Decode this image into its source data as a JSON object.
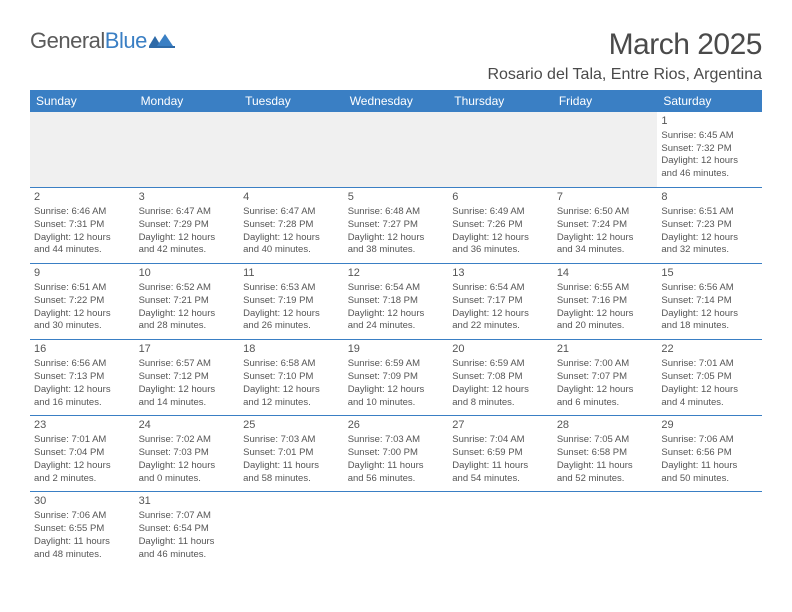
{
  "logo": {
    "text1": "General",
    "text2": "Blue"
  },
  "title": {
    "month": "March 2025",
    "location": "Rosario del Tala, Entre Rios, Argentina"
  },
  "colors": {
    "header_bg": "#3a7fc4",
    "header_text": "#ffffff",
    "cell_border": "#3a7fc4",
    "empty_bg": "#f0f0f0",
    "body_text": "#555555",
    "logo_gray": "#5a5a5a",
    "logo_blue": "#3a7fc4"
  },
  "weekdays": [
    "Sunday",
    "Monday",
    "Tuesday",
    "Wednesday",
    "Thursday",
    "Friday",
    "Saturday"
  ],
  "weeks": [
    [
      null,
      null,
      null,
      null,
      null,
      null,
      {
        "d": "1",
        "sr": "6:45 AM",
        "ss": "7:32 PM",
        "dl": "12 hours and 46 minutes."
      }
    ],
    [
      {
        "d": "2",
        "sr": "6:46 AM",
        "ss": "7:31 PM",
        "dl": "12 hours and 44 minutes."
      },
      {
        "d": "3",
        "sr": "6:47 AM",
        "ss": "7:29 PM",
        "dl": "12 hours and 42 minutes."
      },
      {
        "d": "4",
        "sr": "6:47 AM",
        "ss": "7:28 PM",
        "dl": "12 hours and 40 minutes."
      },
      {
        "d": "5",
        "sr": "6:48 AM",
        "ss": "7:27 PM",
        "dl": "12 hours and 38 minutes."
      },
      {
        "d": "6",
        "sr": "6:49 AM",
        "ss": "7:26 PM",
        "dl": "12 hours and 36 minutes."
      },
      {
        "d": "7",
        "sr": "6:50 AM",
        "ss": "7:24 PM",
        "dl": "12 hours and 34 minutes."
      },
      {
        "d": "8",
        "sr": "6:51 AM",
        "ss": "7:23 PM",
        "dl": "12 hours and 32 minutes."
      }
    ],
    [
      {
        "d": "9",
        "sr": "6:51 AM",
        "ss": "7:22 PM",
        "dl": "12 hours and 30 minutes."
      },
      {
        "d": "10",
        "sr": "6:52 AM",
        "ss": "7:21 PM",
        "dl": "12 hours and 28 minutes."
      },
      {
        "d": "11",
        "sr": "6:53 AM",
        "ss": "7:19 PM",
        "dl": "12 hours and 26 minutes."
      },
      {
        "d": "12",
        "sr": "6:54 AM",
        "ss": "7:18 PM",
        "dl": "12 hours and 24 minutes."
      },
      {
        "d": "13",
        "sr": "6:54 AM",
        "ss": "7:17 PM",
        "dl": "12 hours and 22 minutes."
      },
      {
        "d": "14",
        "sr": "6:55 AM",
        "ss": "7:16 PM",
        "dl": "12 hours and 20 minutes."
      },
      {
        "d": "15",
        "sr": "6:56 AM",
        "ss": "7:14 PM",
        "dl": "12 hours and 18 minutes."
      }
    ],
    [
      {
        "d": "16",
        "sr": "6:56 AM",
        "ss": "7:13 PM",
        "dl": "12 hours and 16 minutes."
      },
      {
        "d": "17",
        "sr": "6:57 AM",
        "ss": "7:12 PM",
        "dl": "12 hours and 14 minutes."
      },
      {
        "d": "18",
        "sr": "6:58 AM",
        "ss": "7:10 PM",
        "dl": "12 hours and 12 minutes."
      },
      {
        "d": "19",
        "sr": "6:59 AM",
        "ss": "7:09 PM",
        "dl": "12 hours and 10 minutes."
      },
      {
        "d": "20",
        "sr": "6:59 AM",
        "ss": "7:08 PM",
        "dl": "12 hours and 8 minutes."
      },
      {
        "d": "21",
        "sr": "7:00 AM",
        "ss": "7:07 PM",
        "dl": "12 hours and 6 minutes."
      },
      {
        "d": "22",
        "sr": "7:01 AM",
        "ss": "7:05 PM",
        "dl": "12 hours and 4 minutes."
      }
    ],
    [
      {
        "d": "23",
        "sr": "7:01 AM",
        "ss": "7:04 PM",
        "dl": "12 hours and 2 minutes."
      },
      {
        "d": "24",
        "sr": "7:02 AM",
        "ss": "7:03 PM",
        "dl": "12 hours and 0 minutes."
      },
      {
        "d": "25",
        "sr": "7:03 AM",
        "ss": "7:01 PM",
        "dl": "11 hours and 58 minutes."
      },
      {
        "d": "26",
        "sr": "7:03 AM",
        "ss": "7:00 PM",
        "dl": "11 hours and 56 minutes."
      },
      {
        "d": "27",
        "sr": "7:04 AM",
        "ss": "6:59 PM",
        "dl": "11 hours and 54 minutes."
      },
      {
        "d": "28",
        "sr": "7:05 AM",
        "ss": "6:58 PM",
        "dl": "11 hours and 52 minutes."
      },
      {
        "d": "29",
        "sr": "7:06 AM",
        "ss": "6:56 PM",
        "dl": "11 hours and 50 minutes."
      }
    ],
    [
      {
        "d": "30",
        "sr": "7:06 AM",
        "ss": "6:55 PM",
        "dl": "11 hours and 48 minutes."
      },
      {
        "d": "31",
        "sr": "7:07 AM",
        "ss": "6:54 PM",
        "dl": "11 hours and 46 minutes."
      },
      null,
      null,
      null,
      null,
      null
    ]
  ],
  "labels": {
    "sunrise": "Sunrise:",
    "sunset": "Sunset:",
    "daylight": "Daylight:"
  }
}
